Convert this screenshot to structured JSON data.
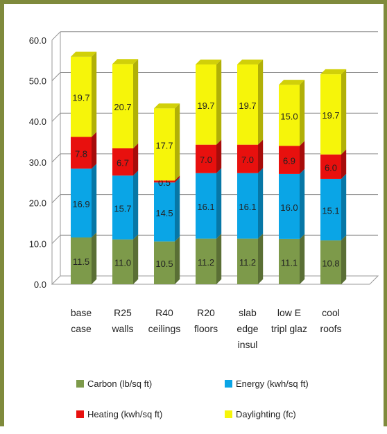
{
  "chart_data": {
    "type": "bar",
    "stacked": true,
    "style": "3d",
    "title": "",
    "xlabel": "",
    "ylabel": "",
    "ylim": [
      0,
      60
    ],
    "yticks": [
      "0.0",
      "10.0",
      "20.0",
      "30.0",
      "40.0",
      "50.0",
      "60.0"
    ],
    "grid": true,
    "legend_position": "bottom",
    "categories": [
      [
        "base",
        "case"
      ],
      [
        "R25",
        "walls"
      ],
      [
        "R40",
        "ceilings"
      ],
      [
        "R20",
        "floors"
      ],
      [
        "slab",
        "edge",
        "insul"
      ],
      [
        "low E",
        "tripl glaz"
      ],
      [
        "cool",
        "roofs"
      ]
    ],
    "series": [
      {
        "name": "Carbon (lb/sq ft)",
        "color": "#7d9a4a",
        "values": [
          11.5,
          11.0,
          10.5,
          11.2,
          11.2,
          11.1,
          10.8
        ],
        "labels": [
          "11.5",
          "11.0",
          "10.5",
          "11.2",
          "11.2",
          "11.1",
          "10.8"
        ]
      },
      {
        "name": "Energy (kwh/sq ft)",
        "color": "#0aa5e6",
        "values": [
          16.9,
          15.7,
          14.5,
          16.1,
          16.1,
          16.0,
          15.1
        ],
        "labels": [
          "16.9",
          "15.7",
          "14.5",
          "16.1",
          "16.1",
          "16.0",
          "15.1"
        ]
      },
      {
        "name": "Heating (kwh/sq ft)",
        "color": "#e8100e",
        "values": [
          7.8,
          6.7,
          0.5,
          7.0,
          7.0,
          6.9,
          6.0
        ],
        "labels": [
          "7.8",
          "6.7",
          "0.5",
          "7.0",
          "7.0",
          "6.9",
          "6.0"
        ]
      },
      {
        "name": "Daylighting (fc)",
        "color": "#f6f50a",
        "values": [
          19.7,
          20.7,
          17.7,
          19.7,
          19.7,
          15.0,
          19.7
        ],
        "labels": [
          "19.7",
          "20.7",
          "17.7",
          "19.7",
          "19.7",
          "15.0",
          "19.7"
        ]
      }
    ]
  }
}
